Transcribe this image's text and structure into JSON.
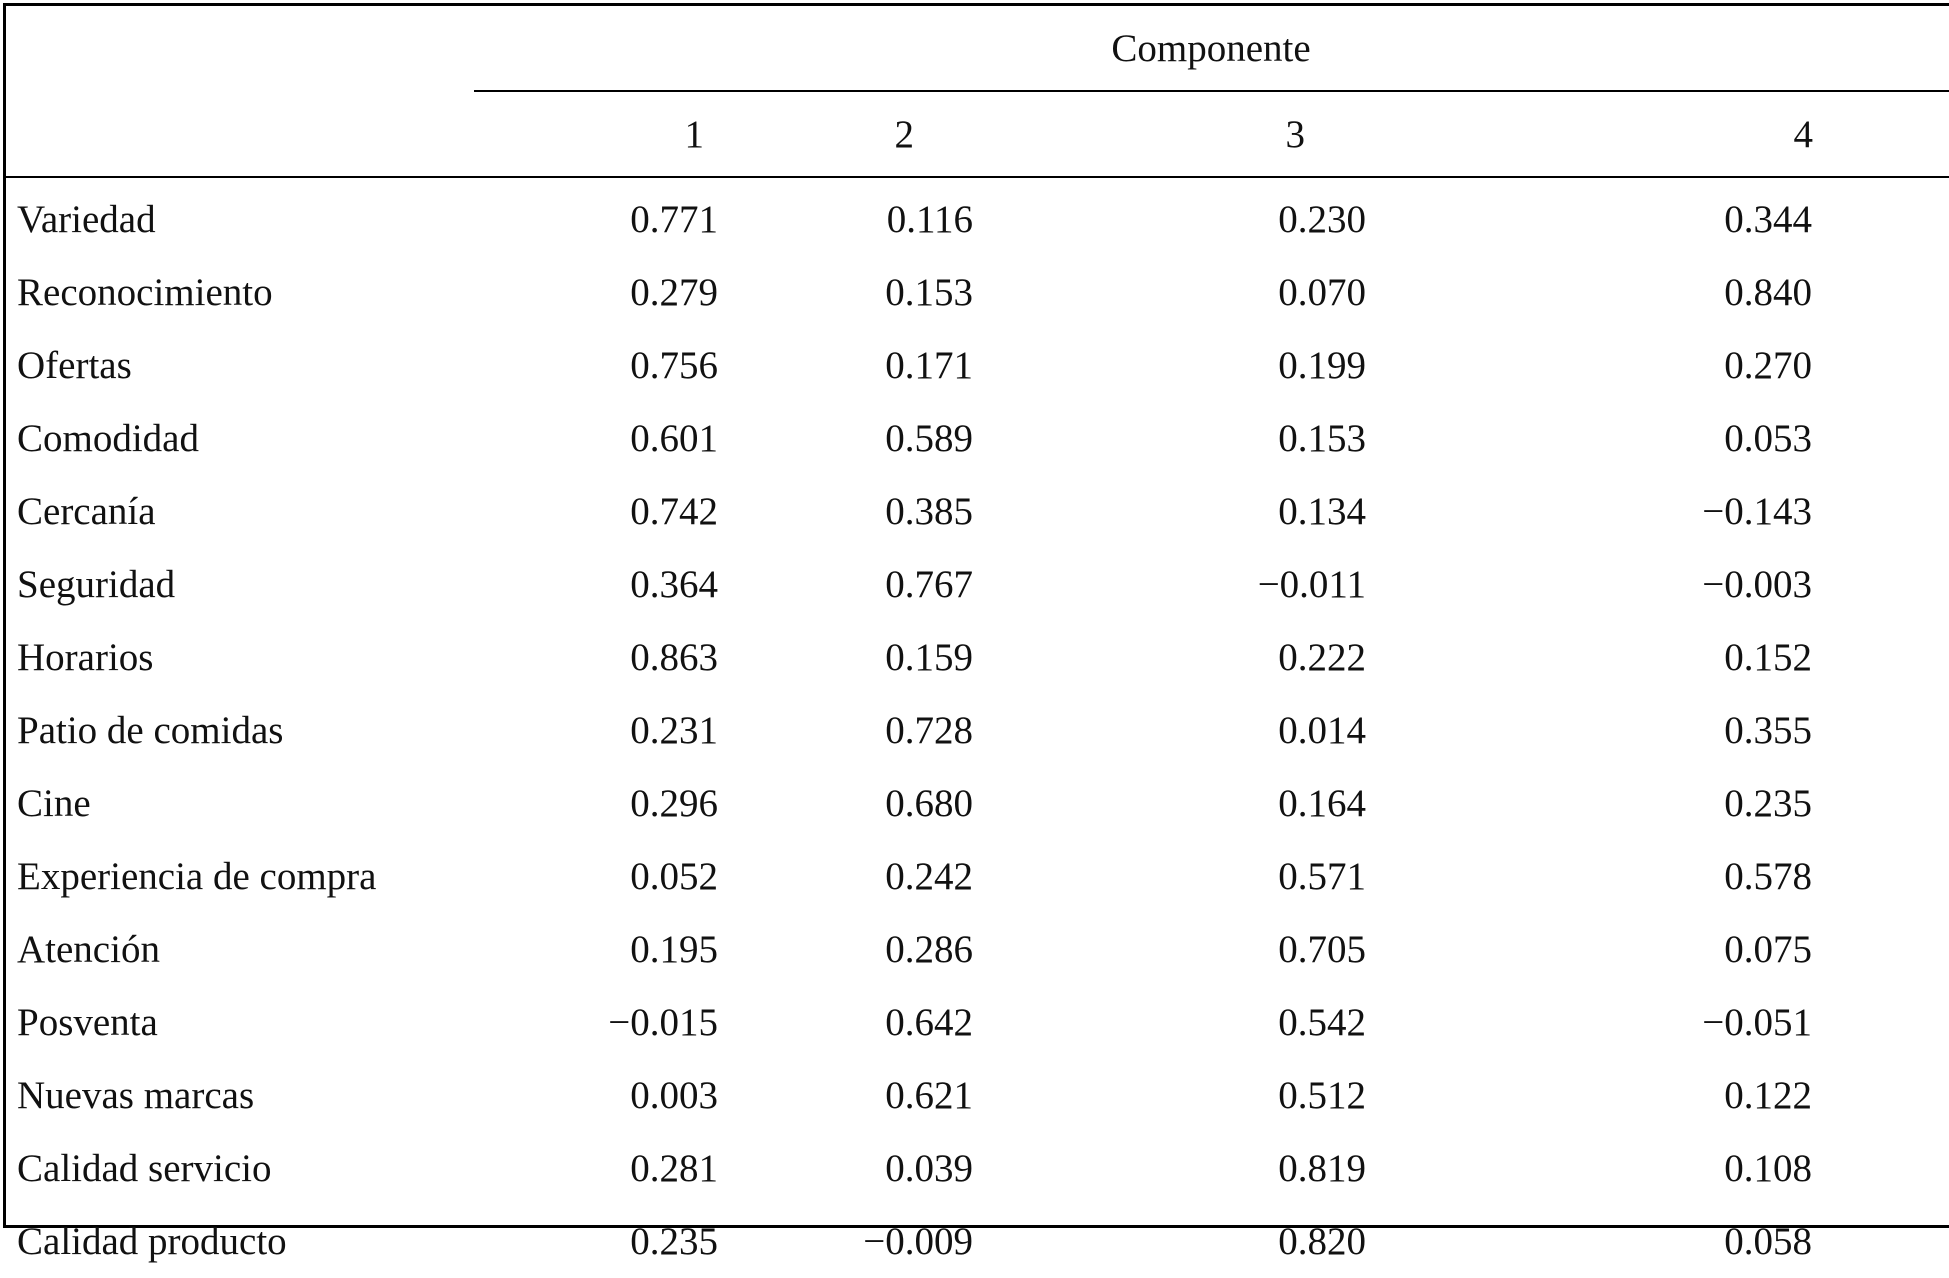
{
  "header": {
    "group_title": "Componente",
    "columns": [
      "1",
      "2",
      "3",
      "4"
    ]
  },
  "rows": [
    {
      "label": "Variedad",
      "values": [
        "0.771",
        "0.116",
        "0.230",
        "0.344"
      ]
    },
    {
      "label": "Reconocimiento",
      "values": [
        "0.279",
        "0.153",
        "0.070",
        "0.840"
      ]
    },
    {
      "label": "Ofertas",
      "values": [
        "0.756",
        "0.171",
        "0.199",
        "0.270"
      ]
    },
    {
      "label": "Comodidad",
      "values": [
        "0.601",
        "0.589",
        "0.153",
        "0.053"
      ]
    },
    {
      "label": "Cercanía",
      "values": [
        "0.742",
        "0.385",
        "0.134",
        "−0.143"
      ]
    },
    {
      "label": "Seguridad",
      "values": [
        "0.364",
        "0.767",
        "−0.011",
        "−0.003"
      ]
    },
    {
      "label": "Horarios",
      "values": [
        "0.863",
        "0.159",
        "0.222",
        "0.152"
      ]
    },
    {
      "label": "Patio de comidas",
      "values": [
        "0.231",
        "0.728",
        "0.014",
        "0.355"
      ]
    },
    {
      "label": "Cine",
      "values": [
        "0.296",
        "0.680",
        "0.164",
        "0.235"
      ]
    },
    {
      "label": "Experiencia de compra",
      "values": [
        "0.052",
        "0.242",
        "0.571",
        "0.578"
      ]
    },
    {
      "label": "Atención",
      "values": [
        "0.195",
        "0.286",
        "0.705",
        "0.075"
      ]
    },
    {
      "label": "Posventa",
      "values": [
        "−0.015",
        "0.642",
        "0.542",
        "−0.051"
      ]
    },
    {
      "label": "Nuevas marcas",
      "values": [
        "0.003",
        "0.621",
        "0.512",
        "0.122"
      ]
    },
    {
      "label": "Calidad servicio",
      "values": [
        "0.281",
        "0.039",
        "0.819",
        "0.108"
      ]
    },
    {
      "label": "Calidad producto",
      "values": [
        "0.235",
        "−0.009",
        "0.820",
        "0.058"
      ]
    }
  ]
}
